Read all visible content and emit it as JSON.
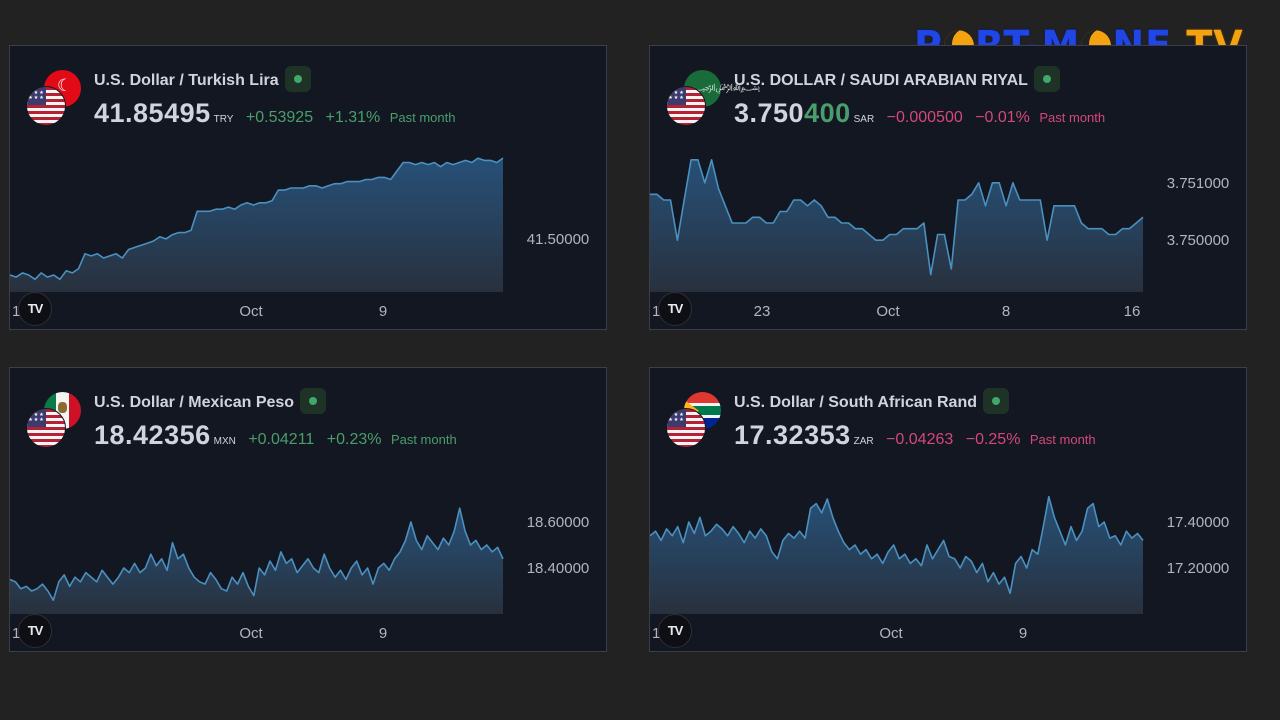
{
  "logo": {
    "part1": "P",
    "part2": "RT-M",
    "part3": "NE",
    "part4": "TV"
  },
  "chart_data": [
    {
      "type": "area",
      "title": "U.S. Dollar / Turkish Lira",
      "price": "41.85495",
      "price_highlight": "",
      "currency": "TRY",
      "change": "+0.53925",
      "change_pct": "+1.31%",
      "period": "Past month",
      "direction": "up",
      "x_ticks": [
        "1",
        "Oct",
        "9"
      ],
      "y_ticks": [
        "41.50000"
      ],
      "ylim": [
        41.25,
        41.9
      ],
      "series": [
        [
          41.33,
          41.32,
          41.34,
          41.33,
          41.31,
          41.34,
          41.32,
          41.33,
          41.31,
          41.35,
          41.34,
          41.36,
          41.43,
          41.42,
          41.43,
          41.41,
          41.42,
          41.43,
          41.41,
          41.45,
          41.46,
          41.47,
          41.48,
          41.49,
          41.51,
          41.5,
          41.52,
          41.53,
          41.53,
          41.54,
          41.63,
          41.63,
          41.63,
          41.64,
          41.64,
          41.65,
          41.64,
          41.66,
          41.67,
          41.66,
          41.67,
          41.67,
          41.68,
          41.73,
          41.73,
          41.74,
          41.74,
          41.74,
          41.75,
          41.75,
          41.74,
          41.75,
          41.76,
          41.76,
          41.77,
          41.77,
          41.77,
          41.78,
          41.78,
          41.79,
          41.79,
          41.78,
          41.82,
          41.86,
          41.86,
          41.85,
          41.86,
          41.85,
          41.86,
          41.84,
          41.86,
          41.85,
          41.86,
          41.87,
          41.86,
          41.88,
          41.87,
          41.87,
          41.86,
          41.88
        ]
      ]
    },
    {
      "type": "area",
      "title": "U.S. DOLLAR / SAUDI ARABIAN RIYAL",
      "price": "3.750",
      "price_highlight": "400",
      "currency": "SAR",
      "change": "−0.000500",
      "change_pct": "−0.01%",
      "period": "Past month",
      "direction": "down",
      "x_ticks": [
        "1",
        "23",
        "Oct",
        "8",
        "16"
      ],
      "y_ticks": [
        "3.751000",
        "3.750000"
      ],
      "ylim": [
        3.7491,
        3.7515
      ],
      "series": [
        [
          3.7508,
          3.7508,
          3.7507,
          3.7507,
          3.75,
          3.7507,
          3.7514,
          3.7514,
          3.751,
          3.7514,
          3.7509,
          3.7506,
          3.7503,
          3.7503,
          3.7503,
          3.7504,
          3.7504,
          3.7503,
          3.7503,
          3.7505,
          3.7505,
          3.7507,
          3.7507,
          3.7506,
          3.7507,
          3.7506,
          3.7504,
          3.7504,
          3.7503,
          3.7503,
          3.7502,
          3.7502,
          3.7501,
          3.75,
          3.75,
          3.7501,
          3.7501,
          3.7502,
          3.7502,
          3.7502,
          3.7503,
          3.7494,
          3.7501,
          3.7501,
          3.7495,
          3.7507,
          3.7507,
          3.7508,
          3.751,
          3.7506,
          3.751,
          3.751,
          3.7506,
          3.751,
          3.7507,
          3.7507,
          3.7507,
          3.7507,
          3.75,
          3.7506,
          3.7506,
          3.7506,
          3.7506,
          3.7503,
          3.7502,
          3.7502,
          3.7502,
          3.7501,
          3.7501,
          3.7502,
          3.7502,
          3.7503,
          3.7504
        ]
      ]
    },
    {
      "type": "area",
      "title": "U.S. Dollar / Mexican Peso",
      "price": "18.42356",
      "price_highlight": "",
      "currency": "MXN",
      "change": "+0.04211",
      "change_pct": "+0.23%",
      "period": "Past month",
      "direction": "up",
      "x_ticks": [
        "1",
        "Oct",
        "9"
      ],
      "y_ticks": [
        "18.60000",
        "18.40000"
      ],
      "ylim": [
        18.2,
        18.8
      ],
      "series": [
        [
          18.35,
          18.34,
          18.31,
          18.32,
          18.3,
          18.31,
          18.33,
          18.3,
          18.26,
          18.34,
          18.37,
          18.32,
          18.36,
          18.34,
          18.38,
          18.36,
          18.34,
          18.39,
          18.36,
          18.33,
          18.36,
          18.4,
          18.38,
          18.42,
          18.38,
          18.4,
          18.46,
          18.41,
          18.44,
          18.39,
          18.51,
          18.44,
          18.46,
          18.4,
          18.36,
          18.34,
          18.33,
          18.38,
          18.35,
          18.31,
          18.3,
          18.36,
          18.33,
          18.38,
          18.32,
          18.28,
          18.4,
          18.37,
          18.43,
          18.39,
          18.47,
          18.42,
          18.44,
          18.38,
          18.41,
          18.44,
          18.4,
          18.38,
          18.46,
          18.4,
          18.36,
          18.39,
          18.35,
          18.4,
          18.43,
          18.37,
          18.4,
          18.33,
          18.4,
          18.42,
          18.39,
          18.44,
          18.47,
          18.52,
          18.6,
          18.52,
          18.48,
          18.54,
          18.51,
          18.48,
          18.53,
          18.5,
          18.56,
          18.66,
          18.56,
          18.5,
          18.52,
          18.48,
          18.5,
          18.47,
          18.49,
          18.44
        ]
      ]
    },
    {
      "type": "area",
      "title": "U.S. Dollar / South African Rand",
      "price": "17.32353",
      "price_highlight": "",
      "currency": "ZAR",
      "change": "−0.04263",
      "change_pct": "−0.25%",
      "period": "Past month",
      "direction": "down",
      "x_ticks": [
        "1",
        "Oct",
        "9"
      ],
      "y_ticks": [
        "17.40000",
        "17.20000"
      ],
      "ylim": [
        17.0,
        17.6
      ],
      "series": [
        [
          17.34,
          17.36,
          17.32,
          17.37,
          17.34,
          17.38,
          17.31,
          17.4,
          17.35,
          17.42,
          17.34,
          17.36,
          17.39,
          17.37,
          17.34,
          17.38,
          17.35,
          17.31,
          17.36,
          17.33,
          17.37,
          17.34,
          17.27,
          17.24,
          17.32,
          17.35,
          17.33,
          17.36,
          17.33,
          17.46,
          17.48,
          17.44,
          17.5,
          17.42,
          17.36,
          17.31,
          17.28,
          17.3,
          17.26,
          17.28,
          17.24,
          17.26,
          17.22,
          17.27,
          17.3,
          17.24,
          17.26,
          17.22,
          17.24,
          17.21,
          17.3,
          17.24,
          17.28,
          17.32,
          17.25,
          17.24,
          17.2,
          17.25,
          17.23,
          17.18,
          17.22,
          17.14,
          17.18,
          17.13,
          17.16,
          17.09,
          17.22,
          17.25,
          17.2,
          17.28,
          17.26,
          17.38,
          17.51,
          17.42,
          17.36,
          17.3,
          17.38,
          17.32,
          17.36,
          17.46,
          17.48,
          17.38,
          17.4,
          17.33,
          17.34,
          17.3,
          17.36,
          17.33,
          17.35,
          17.32
        ]
      ]
    }
  ],
  "colors": {
    "line": "#4a90c0",
    "up": "#4a9e6b",
    "down": "#d4487a",
    "panel_bg": "#131722",
    "page_bg": "#222222"
  },
  "badge_text": "TV"
}
